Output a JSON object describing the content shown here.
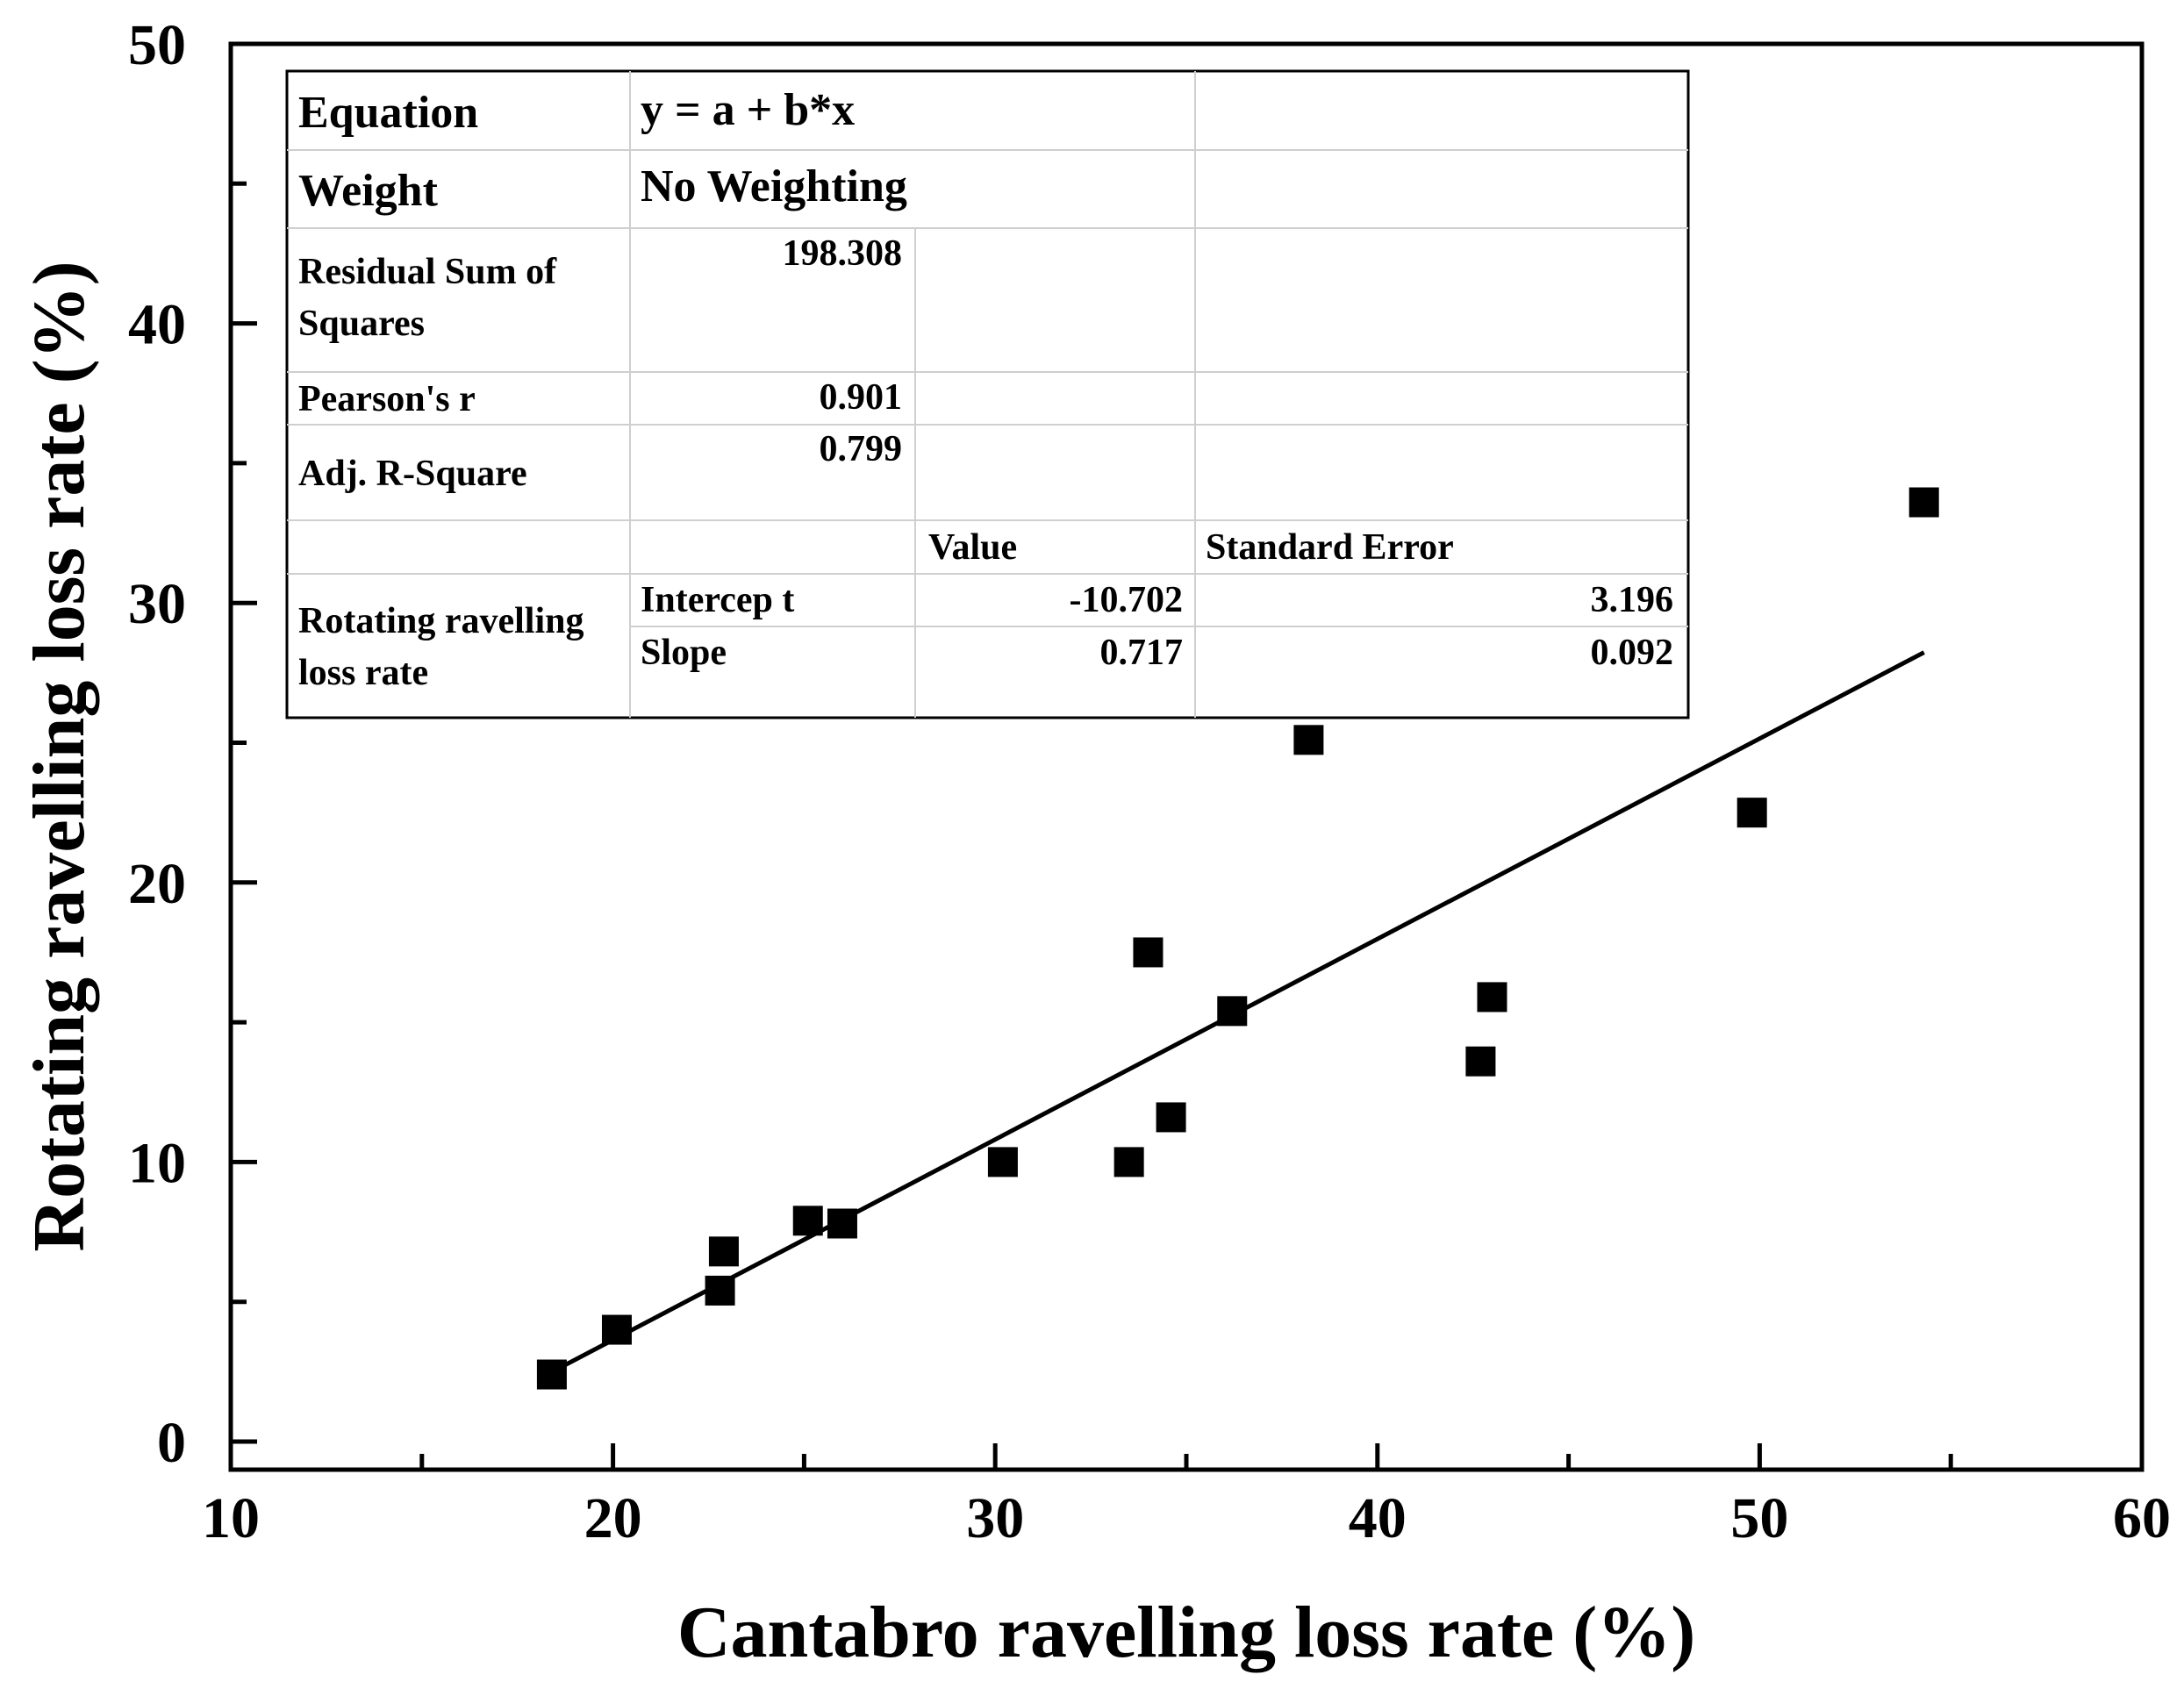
{
  "chart_data": {
    "type": "scatter",
    "xlabel": "Cantabro ravelling loss rate (%)",
    "ylabel": "Rotating ravelling loss rate (%)",
    "xlim": [
      10,
      60
    ],
    "ylim": [
      0,
      50
    ],
    "xticks": [
      "10",
      "20",
      "30",
      "40",
      "50",
      "60"
    ],
    "yticks": [
      "0",
      "10",
      "20",
      "30",
      "40",
      "50"
    ],
    "grid": false,
    "points": [
      {
        "x": 18.4,
        "y": 2.4
      },
      {
        "x": 20.1,
        "y": 4.0
      },
      {
        "x": 22.8,
        "y": 5.4
      },
      {
        "x": 22.9,
        "y": 6.8
      },
      {
        "x": 25.1,
        "y": 7.9
      },
      {
        "x": 26.0,
        "y": 7.8
      },
      {
        "x": 30.2,
        "y": 10.0
      },
      {
        "x": 33.5,
        "y": 10.0
      },
      {
        "x": 34.0,
        "y": 17.5
      },
      {
        "x": 34.6,
        "y": 11.6
      },
      {
        "x": 36.2,
        "y": 15.4
      },
      {
        "x": 38.2,
        "y": 25.1
      },
      {
        "x": 42.7,
        "y": 13.6
      },
      {
        "x": 43.0,
        "y": 15.9
      },
      {
        "x": 49.8,
        "y": 22.5
      },
      {
        "x": 54.3,
        "y": 33.6
      }
    ],
    "fit": {
      "x_start": 18.4,
      "x_end": 54.3,
      "intercept": -10.702,
      "slope": 0.717
    },
    "stats_table": {
      "equation_label": "Equation",
      "equation_value": "y = a + b*x",
      "weight_label": "Weight",
      "weight_value": "No Weighting",
      "rss_label_line1": "Residual Sum of",
      "rss_label_line2": "Squares",
      "rss_value": "198.308",
      "pearson_label": "Pearson's r",
      "pearson_value": "0.901",
      "adjr2_label": "Adj. R-Square",
      "adjr2_value": "0.799",
      "value_header": "Value",
      "stderr_header": "Standard Error",
      "param_group_line1": "Rotating ravelling",
      "param_group_line2": "loss rate",
      "intercept_label": "Intercep t",
      "intercept_value": "-10.702",
      "intercept_se": "3.196",
      "slope_label": "Slope",
      "slope_value": "0.717",
      "slope_se": "0.092"
    }
  }
}
